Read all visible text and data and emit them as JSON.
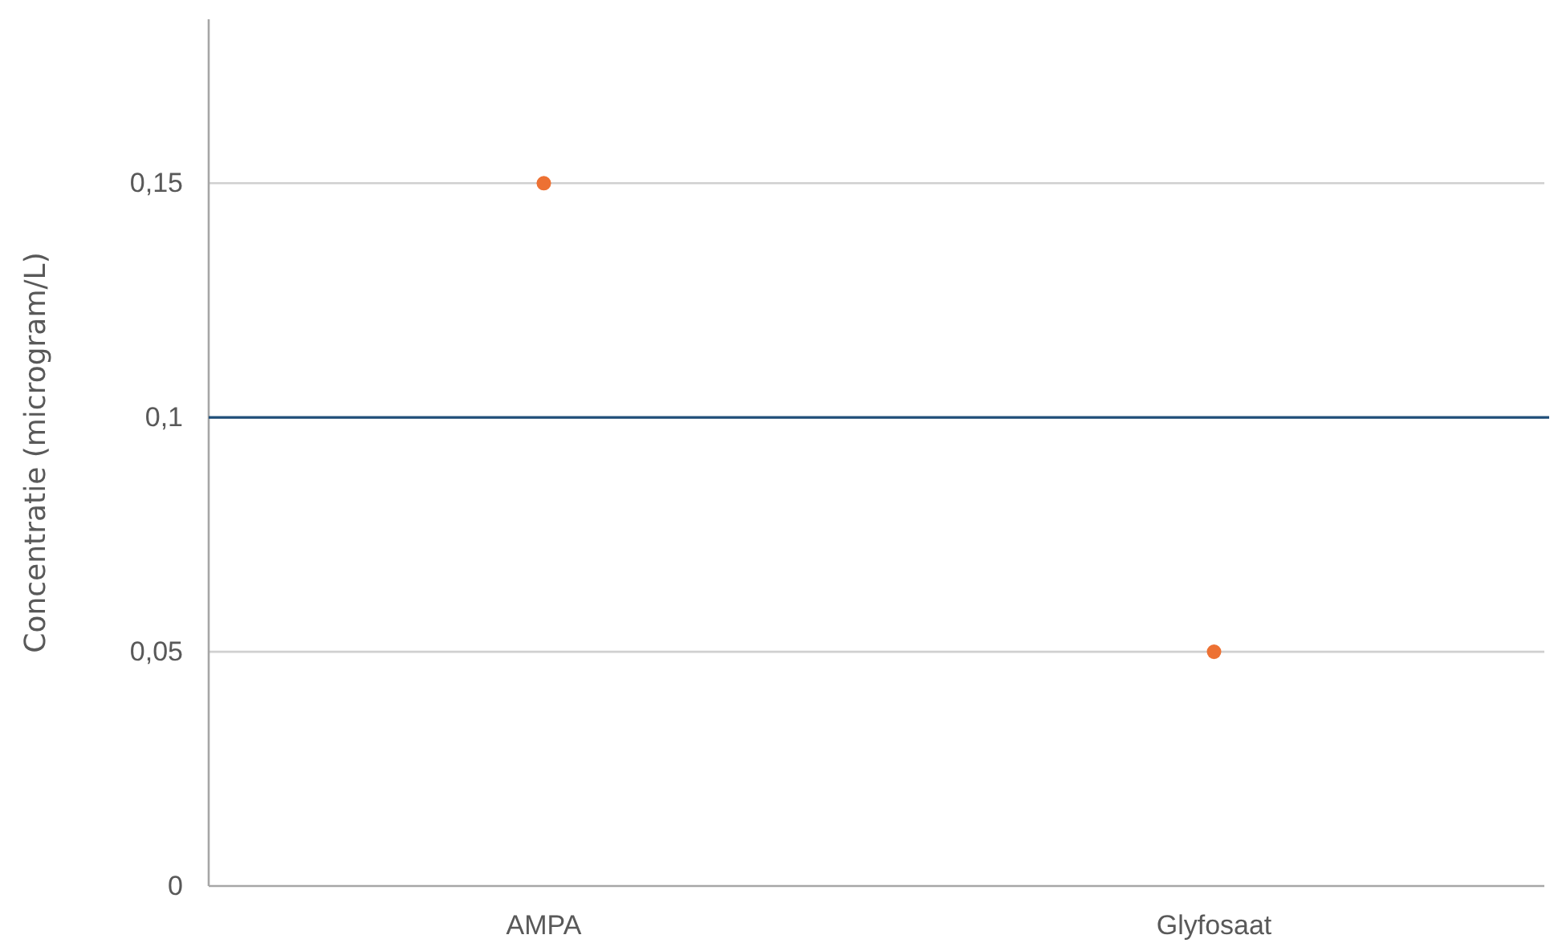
{
  "chart_data": {
    "type": "scatter",
    "ylabel": "Concentratie (microgram/L)",
    "categories": [
      "AMPA",
      "Glyfosaat"
    ],
    "series": [
      {
        "color": "#ed7133",
        "values": [
          0.15,
          0.05
        ]
      }
    ],
    "ylim": [
      0,
      0.185
    ],
    "yticks": [
      {
        "value": 0,
        "label": "0"
      },
      {
        "value": 0.05,
        "label": "0,05"
      },
      {
        "value": 0.1,
        "label": "0,1"
      },
      {
        "value": 0.15,
        "label": "0,15"
      }
    ],
    "grid": "y",
    "marker": "circle",
    "ref_lines": [
      {
        "axis": "y",
        "value": 0.1,
        "color": "#1f4e79"
      }
    ]
  }
}
